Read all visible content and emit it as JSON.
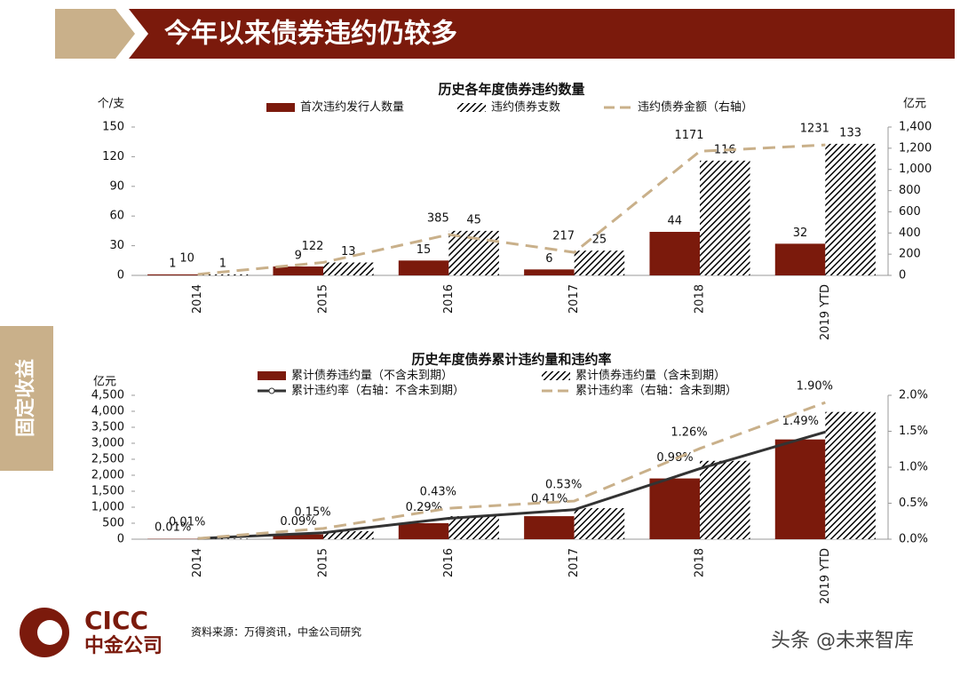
{
  "header": {
    "title": "今年以来债券违约仍较多"
  },
  "side_label": "固定收益",
  "chart_data": [
    {
      "type": "bar",
      "title": "历史各年度债券违约数量",
      "y_label": "个/支",
      "y2_label": "亿元",
      "categories": [
        "2014",
        "2015",
        "2016",
        "2017",
        "2018",
        "2019 YTD"
      ],
      "series": [
        {
          "name": "首次违约发行人数量",
          "type": "bar",
          "color": "#7b1a0c",
          "values": [
            1,
            9,
            15,
            6,
            44,
            32
          ]
        },
        {
          "name": "违约债券支数",
          "type": "bar",
          "color": "#000000",
          "pattern": "hatch",
          "values": [
            1,
            13,
            45,
            25,
            116,
            133
          ]
        },
        {
          "name": "违约债券金额（右轴）",
          "type": "line",
          "color": "#c9b08a",
          "dash": true,
          "axis": "y2",
          "values": [
            10,
            122,
            385,
            217,
            1171,
            1231
          ]
        }
      ],
      "ylim": [
        0,
        150
      ],
      "yticks": [
        0,
        30,
        60,
        90,
        120,
        150
      ],
      "y2lim": [
        0,
        1400
      ],
      "y2ticks": [
        0,
        200,
        400,
        600,
        800,
        {
          "value": 1000,
          "label": "1,000"
        },
        {
          "value": 1200,
          "label": "1,200"
        },
        {
          "value": 1400,
          "label": "1,400"
        }
      ],
      "grid": false
    },
    {
      "type": "bar",
      "title": "历史年度债券累计违约量和违约率",
      "y_label": "亿元",
      "categories": [
        "2014",
        "2015",
        "2016",
        "2017",
        "2018",
        "2019 YTD"
      ],
      "series": [
        {
          "name": "累计债券违约量（不含未到期）",
          "type": "bar",
          "color": "#7b1a0c",
          "values": [
            10,
            150,
            500,
            720,
            1900,
            3120
          ]
        },
        {
          "name": "累计债券违约量（含未到期）",
          "type": "bar",
          "color": "#000000",
          "pattern": "hatch",
          "values": [
            15,
            250,
            720,
            970,
            2450,
            3980
          ]
        },
        {
          "name": "累计违约率（右轴：不含未到期）",
          "type": "line",
          "color": "#333333",
          "dash": false,
          "axis": "y2",
          "values": [
            0.01,
            0.09,
            0.29,
            0.41,
            0.98,
            1.49
          ],
          "value_labels": [
            "0.01%",
            "0.09%",
            "0.29%",
            "0.41%",
            "0.98%",
            "1.49%"
          ]
        },
        {
          "name": "累计违约率（右轴：含未到期）",
          "type": "line",
          "color": "#c9b08a",
          "dash": true,
          "axis": "y2",
          "values": [
            0.01,
            0.15,
            0.43,
            0.53,
            1.26,
            1.9
          ],
          "value_labels": [
            "0.01%",
            "0.15%",
            "0.43%",
            "0.53%",
            "1.26%",
            "1.90%"
          ]
        }
      ],
      "ylim": [
        0,
        4500
      ],
      "yticks": [
        0,
        500,
        {
          "value": 1000,
          "label": "1,000"
        },
        {
          "value": 1500,
          "label": "1,500"
        },
        {
          "value": 2000,
          "label": "2,000"
        },
        {
          "value": 2500,
          "label": "2,500"
        },
        {
          "value": 3000,
          "label": "3,000"
        },
        {
          "value": 3500,
          "label": "3,500"
        },
        {
          "value": 4000,
          "label": "4,000"
        },
        {
          "value": 4500,
          "label": "4,500"
        }
      ],
      "y2lim": [
        0,
        2
      ],
      "y2ticks": [
        {
          "value": 0,
          "label": "0.0%"
        },
        {
          "value": 0.5,
          "label": "0.5%"
        },
        {
          "value": 1,
          "label": "1.0%"
        },
        {
          "value": 1.5,
          "label": "1.5%"
        },
        {
          "value": 2,
          "label": "2.0%"
        }
      ],
      "grid": false
    }
  ],
  "source": "资料来源：万得资讯，中金公司研究",
  "logo": {
    "en": "CICC",
    "cn": "中金公司"
  },
  "watermark": "头条 @未来智库"
}
